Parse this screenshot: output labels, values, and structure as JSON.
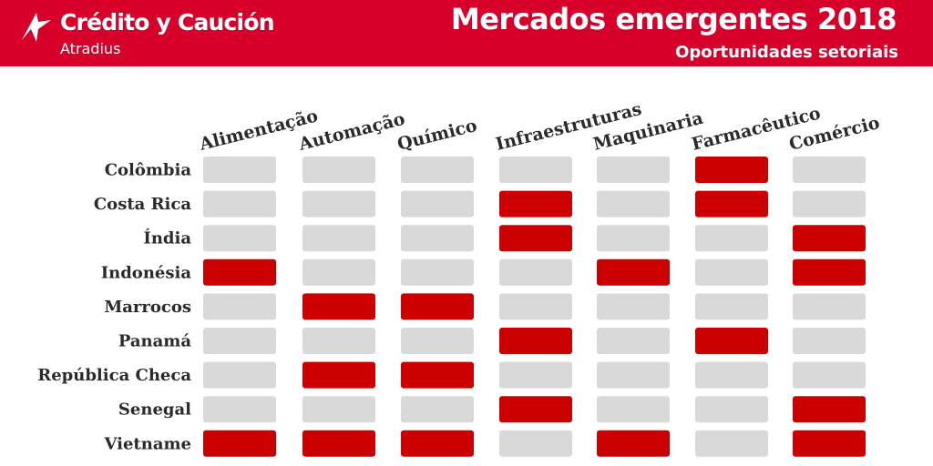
{
  "header": {
    "brand": "Crédito y Caución",
    "brand_sub": "Atradius",
    "title": "Mercados emergentes 2018",
    "subtitle": "Oportunidades setoriais"
  },
  "colors": {
    "header_bg": "#d6002a",
    "cell_on": "#cc0000",
    "cell_off": "#d9d9d9"
  },
  "chart_data": {
    "type": "heatmap",
    "title": "Mercados emergentes 2018",
    "subtitle": "Oportunidades setoriais",
    "columns": [
      "Alimentação",
      "Automação",
      "Químico",
      "Infraestruturas",
      "Maquinaria",
      "Farmacêutico",
      "Comércio"
    ],
    "rows": [
      "Colômbia",
      "Costa Rica",
      "Índia",
      "Indonésia",
      "Marrocos",
      "Panamá",
      "República Checa",
      "Senegal",
      "Vietname"
    ],
    "values": [
      [
        0,
        0,
        0,
        0,
        0,
        1,
        0
      ],
      [
        0,
        0,
        0,
        1,
        0,
        1,
        0
      ],
      [
        0,
        0,
        0,
        1,
        0,
        0,
        1
      ],
      [
        1,
        0,
        0,
        0,
        1,
        0,
        1
      ],
      [
        0,
        1,
        1,
        0,
        0,
        0,
        0
      ],
      [
        0,
        0,
        0,
        1,
        0,
        1,
        0
      ],
      [
        0,
        1,
        1,
        0,
        0,
        0,
        0
      ],
      [
        0,
        0,
        0,
        1,
        0,
        0,
        1
      ],
      [
        1,
        1,
        1,
        0,
        1,
        0,
        1
      ]
    ]
  }
}
